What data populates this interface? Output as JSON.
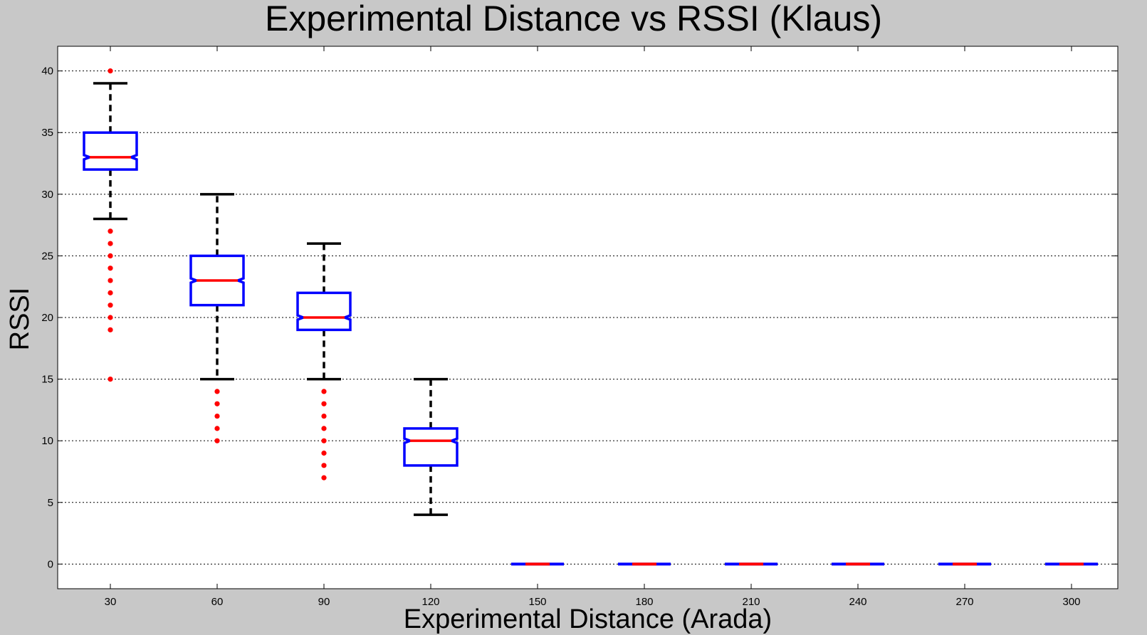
{
  "chart_data": {
    "type": "box",
    "title": "Experimental Distance vs RSSI (Klaus)",
    "xlabel": "Experimental Distance (Arada)",
    "ylabel": "RSSI",
    "categories": [
      "30",
      "60",
      "90",
      "120",
      "150",
      "180",
      "210",
      "240",
      "270",
      "300"
    ],
    "ylim": [
      -2,
      42
    ],
    "yticks": [
      0,
      5,
      10,
      15,
      20,
      25,
      30,
      35,
      40
    ],
    "grid": "horizontal-dotted",
    "boxes": [
      {
        "category": "30",
        "whisker_low": 28,
        "q1": 32,
        "median": 33,
        "q3": 35,
        "whisker_high": 39,
        "outliers": [
          40,
          27,
          26,
          25,
          24,
          23,
          22,
          21,
          20,
          19,
          15
        ]
      },
      {
        "category": "60",
        "whisker_low": 15,
        "q1": 21,
        "median": 23,
        "q3": 25,
        "whisker_high": 30,
        "outliers": [
          14,
          13,
          12,
          11,
          10
        ]
      },
      {
        "category": "90",
        "whisker_low": 15,
        "q1": 19,
        "median": 20,
        "q3": 22,
        "whisker_high": 26,
        "outliers": [
          14,
          13,
          12,
          11,
          10,
          9,
          8,
          7
        ]
      },
      {
        "category": "120",
        "whisker_low": 4,
        "q1": 8,
        "median": 10,
        "q3": 11,
        "whisker_high": 15,
        "outliers": []
      },
      {
        "category": "150",
        "whisker_low": 0,
        "q1": 0,
        "median": 0,
        "q3": 0,
        "whisker_high": 0,
        "outliers": []
      },
      {
        "category": "180",
        "whisker_low": 0,
        "q1": 0,
        "median": 0,
        "q3": 0,
        "whisker_high": 0,
        "outliers": []
      },
      {
        "category": "210",
        "whisker_low": 0,
        "q1": 0,
        "median": 0,
        "q3": 0,
        "whisker_high": 0,
        "outliers": []
      },
      {
        "category": "240",
        "whisker_low": 0,
        "q1": 0,
        "median": 0,
        "q3": 0,
        "whisker_high": 0,
        "outliers": []
      },
      {
        "category": "270",
        "whisker_low": 0,
        "q1": 0,
        "median": 0,
        "q3": 0,
        "whisker_high": 0,
        "outliers": []
      },
      {
        "category": "300",
        "whisker_low": 0,
        "q1": 0,
        "median": 0,
        "q3": 0,
        "whisker_high": 0,
        "outliers": []
      }
    ],
    "colors": {
      "box": "#0000ff",
      "median": "#ff0000",
      "whisker": "#000000",
      "outlier": "#ff0000",
      "grid": "#000000",
      "figure_background": "#c8c8c8",
      "axes_background": "#ffffff"
    }
  }
}
